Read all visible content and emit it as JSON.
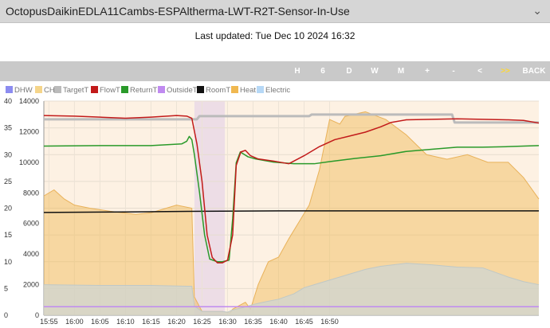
{
  "header": {
    "title": "OctopusDaikinEDLA11Cambs-ESPAltherma-LWT-R2T-Sensor-In-Use",
    "expand_icon": "chevron-down-icon",
    "expand_glyph": "⌄"
  },
  "status": {
    "last_updated": "Last updated: Tue Dec 10 2024 16:32"
  },
  "nav": {
    "buttons": [
      "H",
      "6",
      "D",
      "W",
      "M",
      "+",
      "-",
      "<",
      ">>",
      "BACK"
    ]
  },
  "colors": {
    "dhw": "#8c8cf0",
    "ch": "#f5d58a",
    "targett": "#bbbbbb",
    "flowt": "#c21a1a",
    "returnt": "#2a9a2a",
    "outsidet": "#c08af0",
    "roomt": "#111111",
    "heat": "#f0b850",
    "electric": "#b6d8f6"
  },
  "chart_data": {
    "type": "line",
    "legend": [
      "DHW",
      "CH",
      "TargetT",
      "FlowT",
      "ReturnT",
      "OutsideT",
      "RoomT",
      "Heat",
      "Electric"
    ],
    "x_ticks": [
      "15:55",
      "16:00",
      "16:05",
      "16:10",
      "16:15",
      "16:20",
      "16:25",
      "16:30",
      "16:35",
      "16:40",
      "16:45",
      "16:50"
    ],
    "x_range_min": [
      -1,
      96
    ],
    "y_left": {
      "ticks": [
        0,
        5,
        10,
        15,
        20,
        25,
        30,
        35,
        40
      ],
      "range": [
        0,
        40
      ],
      "unit": "°C"
    },
    "y_right": {
      "ticks": [
        0,
        2000,
        4000,
        6000,
        8000,
        10000,
        12000,
        14000
      ],
      "range": [
        0,
        14000
      ],
      "unit": "W"
    },
    "bands": [
      {
        "name": "CH",
        "from": -1,
        "to": 28.5
      },
      {
        "name": "DHW",
        "from": 28.5,
        "to": 34.5
      },
      {
        "name": "CH",
        "from": 34.5,
        "to": 96
      }
    ],
    "series": [
      {
        "name": "TargetT",
        "axis": "left",
        "points": [
          [
            -1,
            36.6
          ],
          [
            29,
            36.6
          ],
          [
            29.5,
            37.2
          ],
          [
            51,
            37.2
          ],
          [
            51.5,
            37.5
          ],
          [
            79,
            37.5
          ],
          [
            79.5,
            36
          ],
          [
            96,
            36
          ]
        ]
      },
      {
        "name": "FlowT",
        "axis": "left",
        "points": [
          [
            -1,
            37.3
          ],
          [
            5,
            37.2
          ],
          [
            10,
            37.0
          ],
          [
            15,
            36.8
          ],
          [
            20,
            37.0
          ],
          [
            25,
            37.3
          ],
          [
            27,
            37.2
          ],
          [
            28,
            36.8
          ],
          [
            29,
            32
          ],
          [
            30,
            25
          ],
          [
            31,
            15
          ],
          [
            32,
            10.8
          ],
          [
            33,
            9.8
          ],
          [
            34,
            9.8
          ],
          [
            35,
            10.3
          ],
          [
            36,
            15
          ],
          [
            36.7,
            28
          ],
          [
            37.6,
            30.5
          ],
          [
            38.5,
            30.8
          ],
          [
            39.5,
            29.8
          ],
          [
            41,
            29.2
          ],
          [
            44,
            28.8
          ],
          [
            47,
            28.3
          ],
          [
            50,
            29.8
          ],
          [
            53,
            31.5
          ],
          [
            56,
            32.8
          ],
          [
            59,
            33.5
          ],
          [
            62,
            34.2
          ],
          [
            65,
            35.2
          ],
          [
            67,
            36.0
          ],
          [
            70,
            36.5
          ],
          [
            75,
            36.6
          ],
          [
            80,
            36.7
          ],
          [
            85,
            36.6
          ],
          [
            90,
            36.5
          ],
          [
            93,
            36.4
          ],
          [
            96,
            35.9
          ]
        ]
      },
      {
        "name": "ReturnT",
        "axis": "left",
        "points": [
          [
            -1,
            31.6
          ],
          [
            10,
            31.7
          ],
          [
            20,
            31.7
          ],
          [
            26,
            32.0
          ],
          [
            27,
            32.5
          ],
          [
            27.5,
            33.4
          ],
          [
            28,
            32.8
          ],
          [
            28.5,
            30
          ],
          [
            29.5,
            23
          ],
          [
            30.5,
            15
          ],
          [
            31.5,
            10.5
          ],
          [
            33,
            10
          ],
          [
            34,
            10
          ],
          [
            35.3,
            10.3
          ],
          [
            36,
            18
          ],
          [
            36.7,
            28.5
          ],
          [
            37.5,
            30.5
          ],
          [
            39,
            29.6
          ],
          [
            40.5,
            29.2
          ],
          [
            44,
            28.6
          ],
          [
            48,
            28.3
          ],
          [
            52,
            28.3
          ],
          [
            55,
            28.7
          ],
          [
            60,
            29.3
          ],
          [
            65,
            29.8
          ],
          [
            70,
            30.6
          ],
          [
            75,
            31.0
          ],
          [
            80,
            31.4
          ],
          [
            85,
            31.4
          ],
          [
            90,
            31.5
          ],
          [
            96,
            31.7
          ]
        ]
      },
      {
        "name": "RoomT",
        "axis": "left",
        "points": [
          [
            -1,
            19.2
          ],
          [
            15,
            19.3
          ],
          [
            27,
            19.4
          ],
          [
            45,
            19.5
          ],
          [
            96,
            19.5
          ]
        ]
      },
      {
        "name": "Heat",
        "axis": "right",
        "points": [
          [
            -1,
            7800
          ],
          [
            1,
            8200
          ],
          [
            3,
            7600
          ],
          [
            5,
            7200
          ],
          [
            8,
            7000
          ],
          [
            12,
            6800
          ],
          [
            17,
            6600
          ],
          [
            20,
            6700
          ],
          [
            25,
            7200
          ],
          [
            28,
            7000
          ],
          [
            28.5,
            1200
          ],
          [
            30,
            250
          ],
          [
            34,
            250
          ],
          [
            35.5,
            150
          ],
          [
            36,
            400
          ],
          [
            38.5,
            850
          ],
          [
            39.5,
            400
          ],
          [
            41,
            2000
          ],
          [
            43,
            3500
          ],
          [
            45,
            3800
          ],
          [
            47,
            5000
          ],
          [
            51,
            7200
          ],
          [
            53,
            9500
          ],
          [
            55,
            12800
          ],
          [
            57,
            12500
          ],
          [
            58,
            13000
          ],
          [
            62,
            13300
          ],
          [
            66,
            12800
          ],
          [
            70,
            11800
          ],
          [
            74,
            10500
          ],
          [
            78,
            10200
          ],
          [
            82,
            10500
          ],
          [
            86,
            10000
          ],
          [
            90,
            10000
          ],
          [
            93,
            9000
          ],
          [
            96,
            7600
          ]
        ]
      },
      {
        "name": "Electric",
        "axis": "right",
        "points": [
          [
            -1,
            2000
          ],
          [
            10,
            1950
          ],
          [
            20,
            1950
          ],
          [
            27,
            1900
          ],
          [
            28,
            1900
          ],
          [
            28.5,
            600
          ],
          [
            30,
            250
          ],
          [
            34,
            250
          ],
          [
            35,
            200
          ],
          [
            36,
            350
          ],
          [
            38,
            500
          ],
          [
            40,
            700
          ],
          [
            42,
            850
          ],
          [
            45,
            1050
          ],
          [
            48,
            1400
          ],
          [
            50,
            1800
          ],
          [
            53,
            2100
          ],
          [
            56,
            2400
          ],
          [
            59,
            2700
          ],
          [
            62,
            3000
          ],
          [
            65,
            3200
          ],
          [
            70,
            3400
          ],
          [
            75,
            3300
          ],
          [
            80,
            3150
          ],
          [
            85,
            3100
          ],
          [
            90,
            2500
          ],
          [
            93,
            2200
          ],
          [
            96,
            2000
          ]
        ]
      },
      {
        "name": "OutsideT",
        "axis": "left",
        "points": [
          [
            -1,
            1.6
          ],
          [
            96,
            1.6
          ]
        ]
      }
    ]
  }
}
